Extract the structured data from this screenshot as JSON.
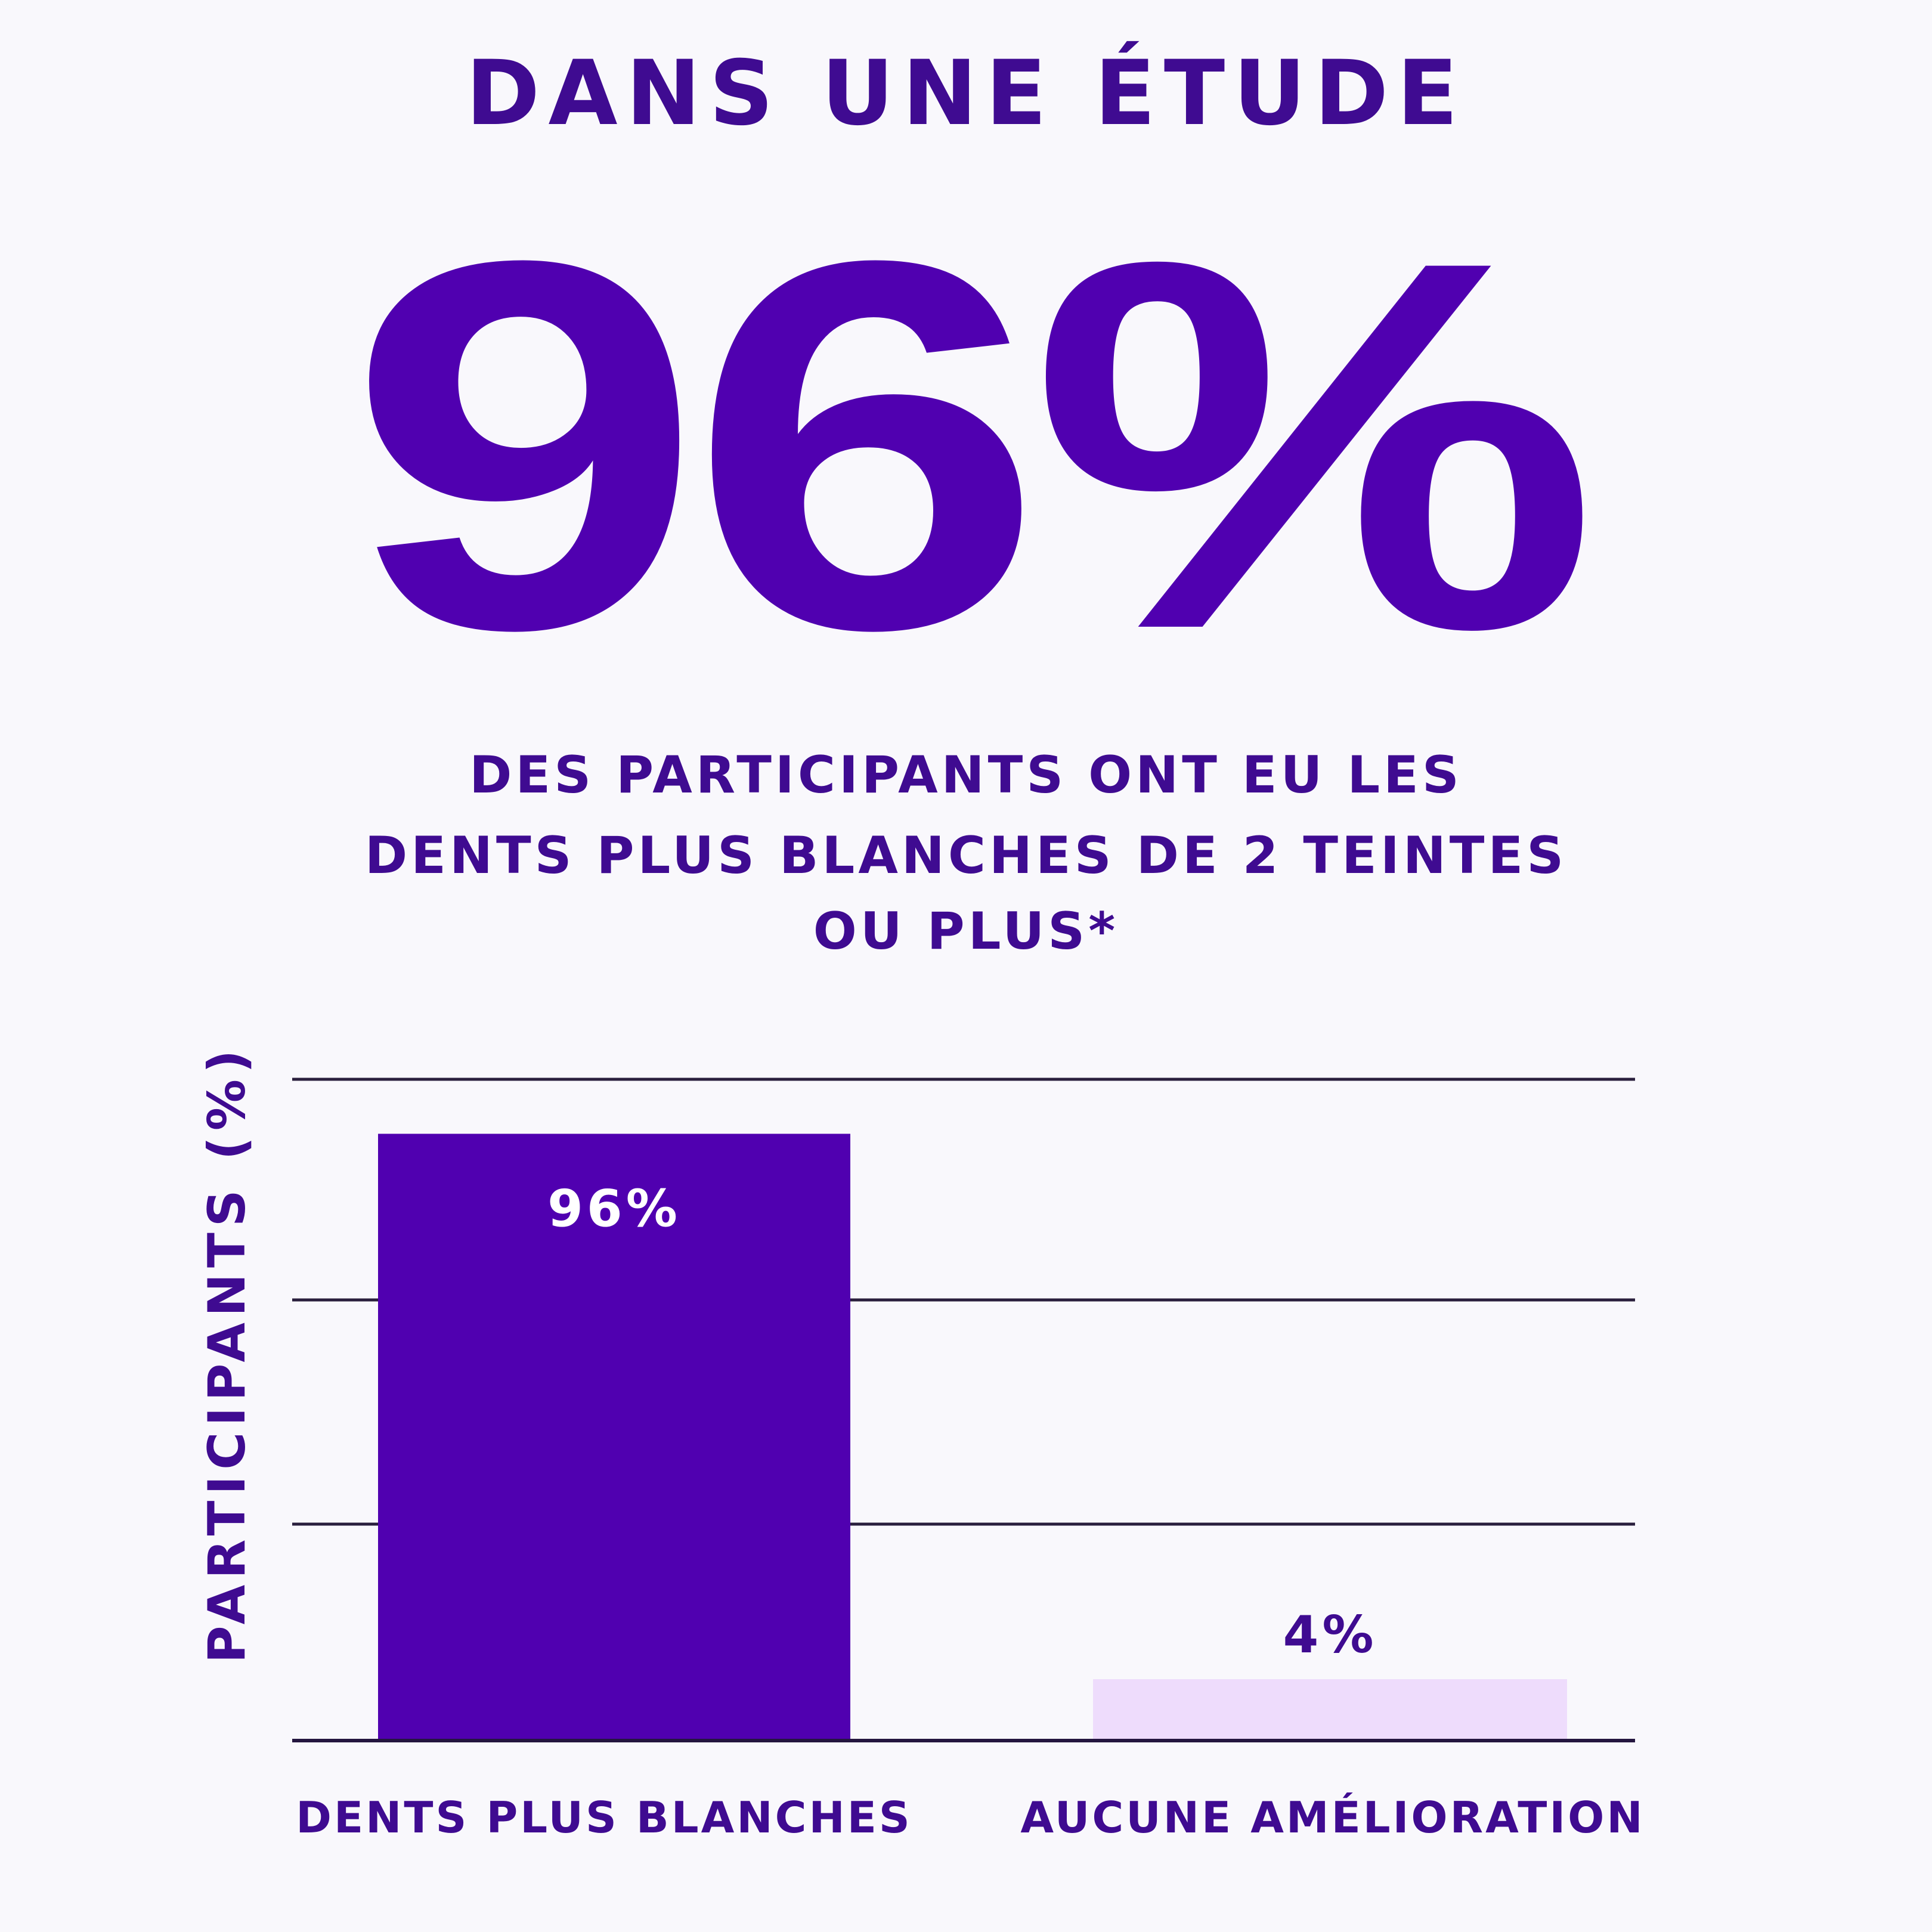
{
  "header": {
    "title": "DANS UNE ÉTUDE",
    "headline_stat": "96%",
    "subtitle_lines": [
      "DES PARTICIPANTS ONT EU LES",
      "DENTS PLUS BLANCHES DE 2 TEINTES",
      "OU PLUS*"
    ]
  },
  "colors": {
    "primary": "#5000b0",
    "light": "#eedcfc",
    "text": "#3f0b91",
    "grid": "#2a1f3d"
  },
  "chart_data": {
    "type": "bar",
    "title": "",
    "xlabel": "",
    "ylabel": "PARTICIPANTS (%)",
    "ylim": [
      0,
      100
    ],
    "grid": true,
    "categories": [
      "DENTS PLUS BLANCHES",
      "AUCUNE AMÉLIORATION"
    ],
    "values": [
      96,
      4
    ],
    "data_labels": [
      "96%",
      "4%"
    ],
    "bar_colors": [
      "#5000b0",
      "#eedcfc"
    ]
  }
}
